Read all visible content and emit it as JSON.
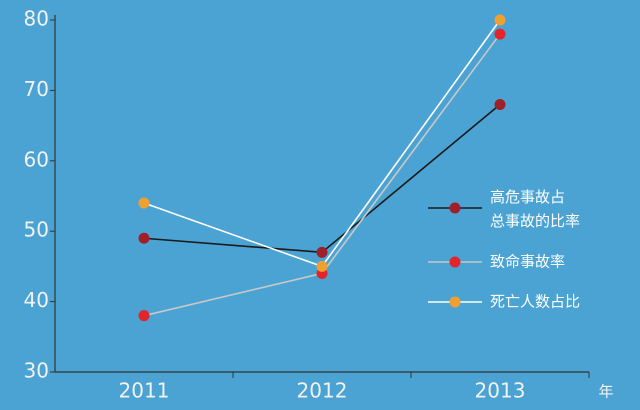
{
  "chart_data": {
    "type": "line",
    "categories": [
      "2011",
      "2012",
      "2013"
    ],
    "x_label": "年",
    "series": [
      {
        "name": "高危事故占总事故的比率",
        "color": "#1a1a1a",
        "marker_color": "#a0202a",
        "values": [
          49,
          47,
          68
        ]
      },
      {
        "name": "致命事故率",
        "color": "#c8c8c8",
        "marker_color": "#e3242b",
        "values": [
          38,
          44,
          78
        ]
      },
      {
        "name": "死亡人数占比",
        "color": "#ffffff",
        "marker_color": "#f0a030",
        "values": [
          54,
          45,
          80
        ]
      }
    ],
    "ylim": [
      30,
      80
    ],
    "yticks": [
      30,
      40,
      50,
      60,
      70,
      80
    ],
    "legend": "right"
  }
}
